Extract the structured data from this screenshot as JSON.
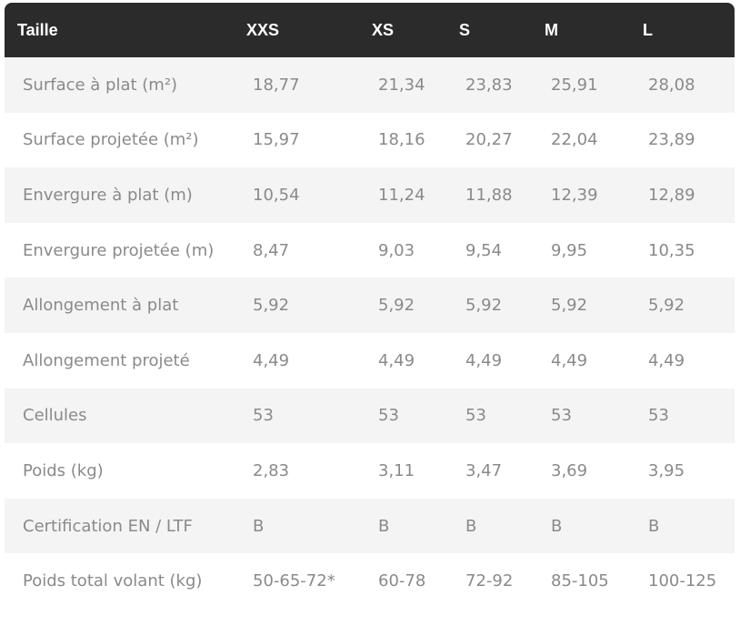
{
  "table": {
    "headers": [
      "Taille",
      "XXS",
      "XS",
      "S",
      "M",
      "L"
    ],
    "rows": [
      {
        "label": "Surface à plat (m²)",
        "values": [
          "18,77",
          "21,34",
          "23,83",
          "25,91",
          "28,08"
        ]
      },
      {
        "label": "Surface projetée (m²)",
        "values": [
          "15,97",
          "18,16",
          "20,27",
          "22,04",
          "23,89"
        ]
      },
      {
        "label": "Envergure à plat (m)",
        "values": [
          "10,54",
          "11,24",
          "11,88",
          "12,39",
          "12,89"
        ]
      },
      {
        "label": "Envergure projetée (m)",
        "values": [
          "8,47",
          "9,03",
          "9,54",
          "9,95",
          "10,35"
        ]
      },
      {
        "label": "Allongement à plat",
        "values": [
          "5,92",
          "5,92",
          "5,92",
          "5,92",
          "5,92"
        ]
      },
      {
        "label": "Allongement projeté",
        "values": [
          "4,49",
          "4,49",
          "4,49",
          "4,49",
          "4,49"
        ]
      },
      {
        "label": "Cellules",
        "values": [
          "53",
          "53",
          "53",
          "53",
          "53"
        ]
      },
      {
        "label": "Poids (kg)",
        "values": [
          "2,83",
          "3,11",
          "3,47",
          "3,69",
          "3,95"
        ]
      },
      {
        "label": "Certification EN / LTF",
        "values": [
          "B",
          "B",
          "B",
          "B",
          "B"
        ]
      },
      {
        "label": "Poids total volant (kg)",
        "values": [
          "50-65-72*",
          "60-78",
          "72-92",
          "85-105",
          "100-125"
        ]
      }
    ]
  },
  "colors": {
    "header_bg": "#2b2b2b",
    "header_text": "#ffffff",
    "row_shaded": "#f4f4f4",
    "cell_text": "#8a8a8a"
  }
}
